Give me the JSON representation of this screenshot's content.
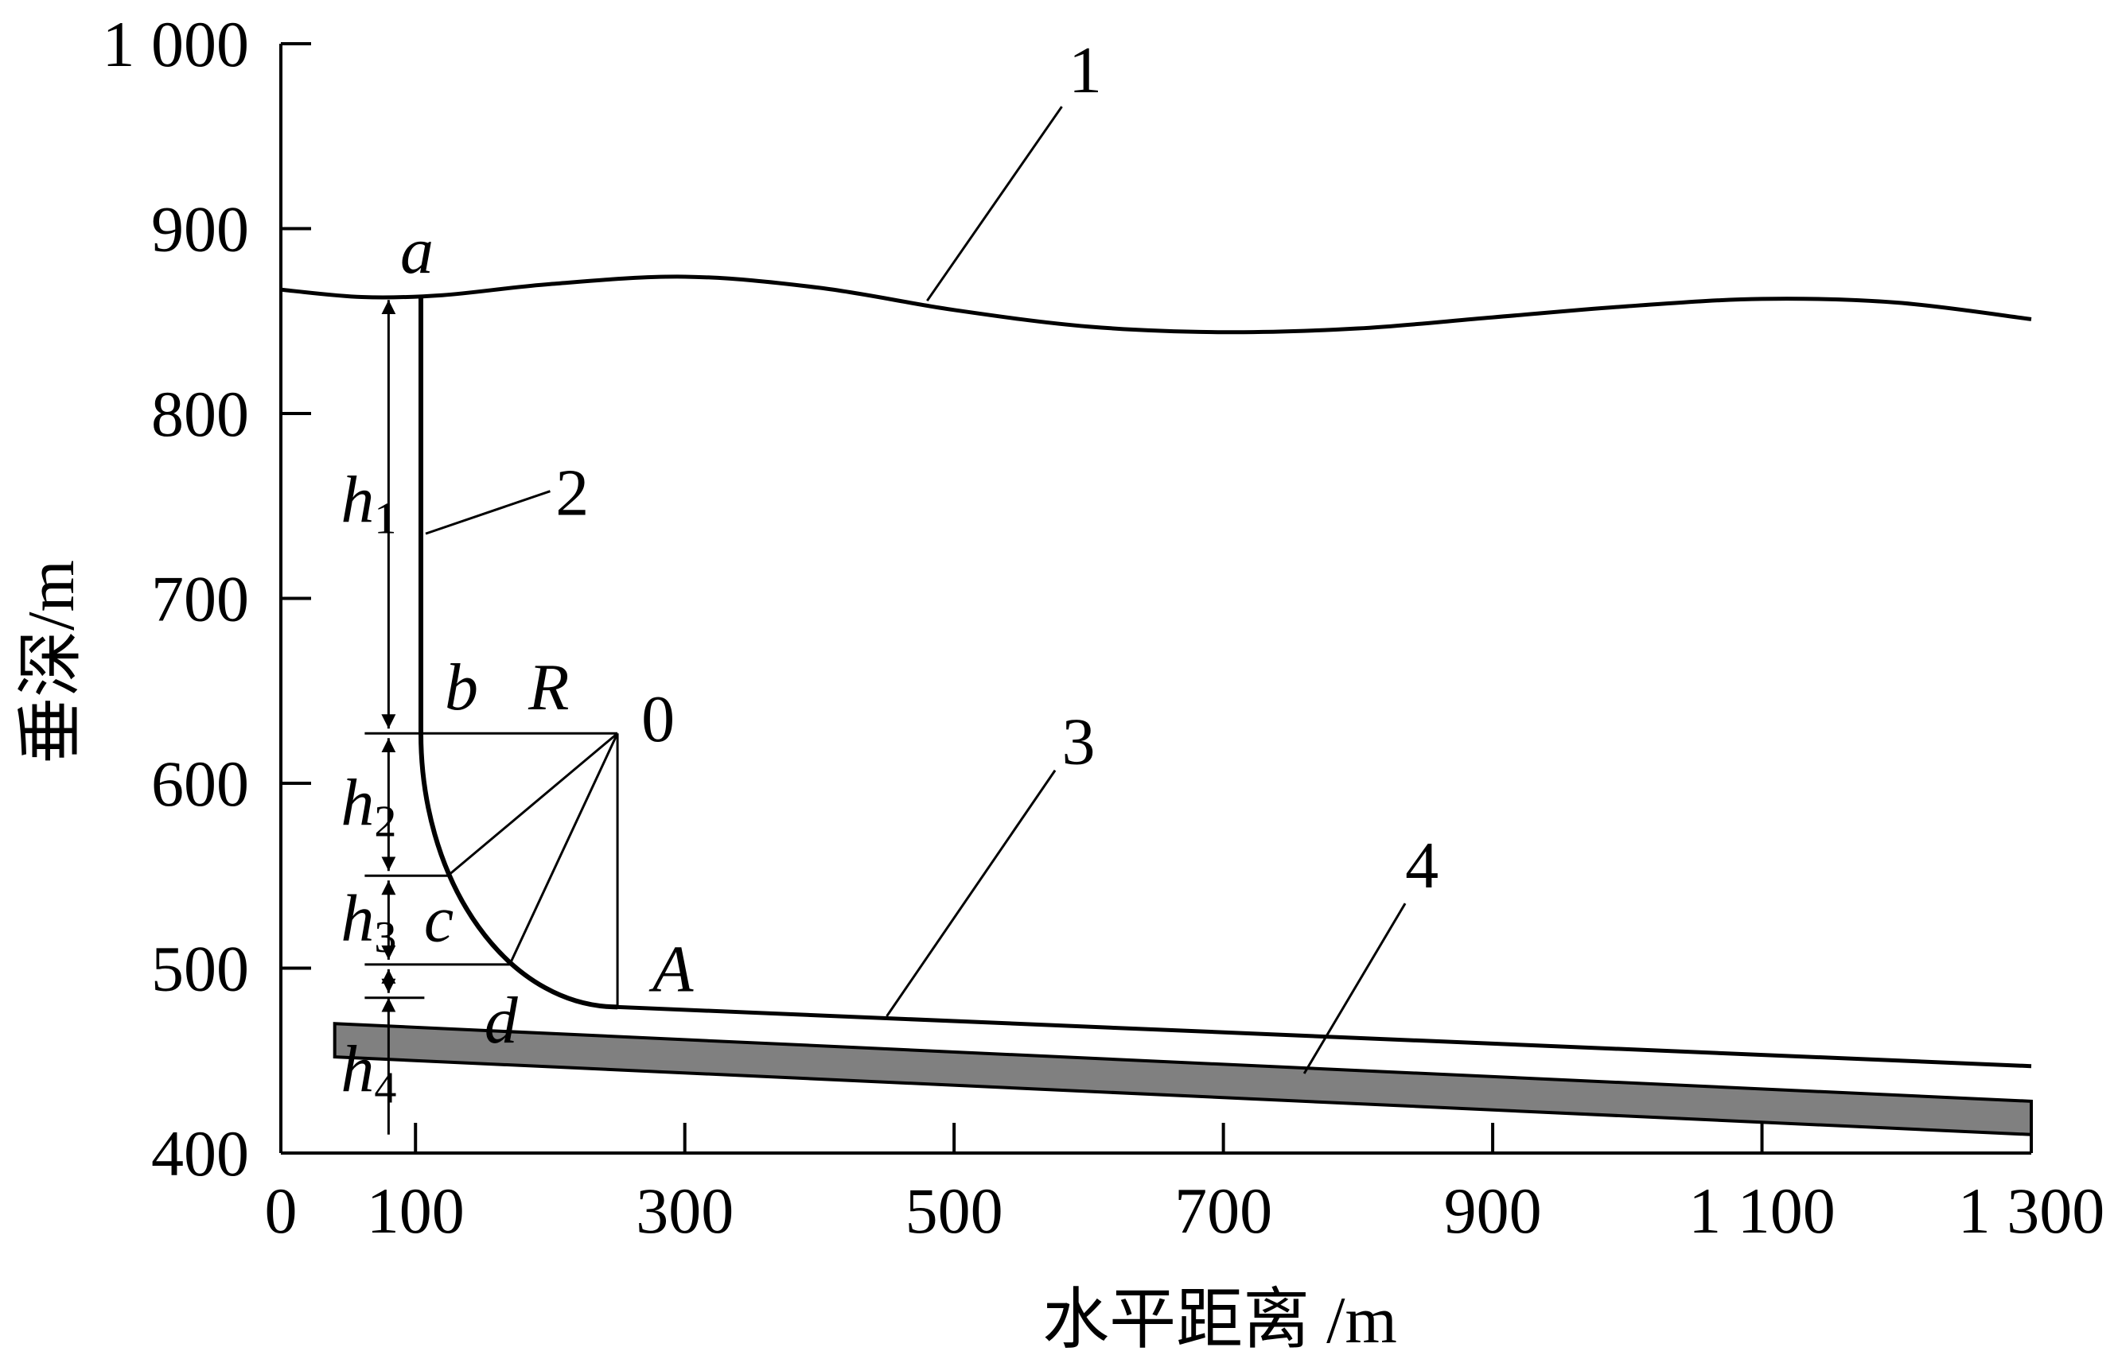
{
  "chart_data": {
    "type": "diagram",
    "xlabel": "水平距离 /m",
    "ylabel": "垂深/m",
    "xlim": [
      0,
      1300
    ],
    "ylim": [
      400,
      1000
    ],
    "x_ticks": [
      "0",
      "100",
      "300",
      "500",
      "700",
      "900",
      "1 100",
      "1 300"
    ],
    "y_ticks": [
      "400",
      "500",
      "600",
      "700",
      "800",
      "900",
      "1 000"
    ],
    "curve_labels": [
      "1",
      "2",
      "3",
      "4"
    ],
    "points": {
      "a": {
        "label": "a",
        "x": 104,
        "y": 864
      },
      "b": {
        "label": "b",
        "x": 104,
        "y": 627
      },
      "center": {
        "label": "0",
        "x": 250,
        "y": 627
      },
      "c": {
        "label": "c",
        "x": 124,
        "y": 550
      },
      "d": {
        "label": "d",
        "x": 170,
        "y": 502
      },
      "A": {
        "label": "A",
        "x": 250,
        "y": 479
      }
    },
    "radius_label": "R",
    "h_labels": [
      {
        "letter": "h",
        "sub": "1"
      },
      {
        "letter": "h",
        "sub": "2"
      },
      {
        "letter": "h",
        "sub": "3"
      },
      {
        "letter": "h",
        "sub": "4"
      }
    ],
    "surface": [
      [
        0,
        867
      ],
      [
        60,
        863
      ],
      [
        120,
        864
      ],
      [
        200,
        870
      ],
      [
        300,
        874
      ],
      [
        400,
        868
      ],
      [
        500,
        856
      ],
      [
        600,
        847
      ],
      [
        700,
        844
      ],
      [
        800,
        846
      ],
      [
        900,
        852
      ],
      [
        1000,
        858
      ],
      [
        1100,
        862
      ],
      [
        1200,
        860
      ],
      [
        1300,
        851
      ]
    ],
    "horizontal_section": [
      [
        250,
        479
      ],
      [
        1300,
        447
      ]
    ],
    "seam": {
      "top": [
        [
          40,
          470
        ],
        [
          1300,
          428
        ]
      ],
      "bottom": [
        [
          40,
          452
        ],
        [
          1300,
          410
        ]
      ],
      "fill": "#808080"
    },
    "h_dimension": {
      "x": 80,
      "levels": [
        864,
        627,
        550,
        502,
        484,
        410
      ]
    }
  }
}
